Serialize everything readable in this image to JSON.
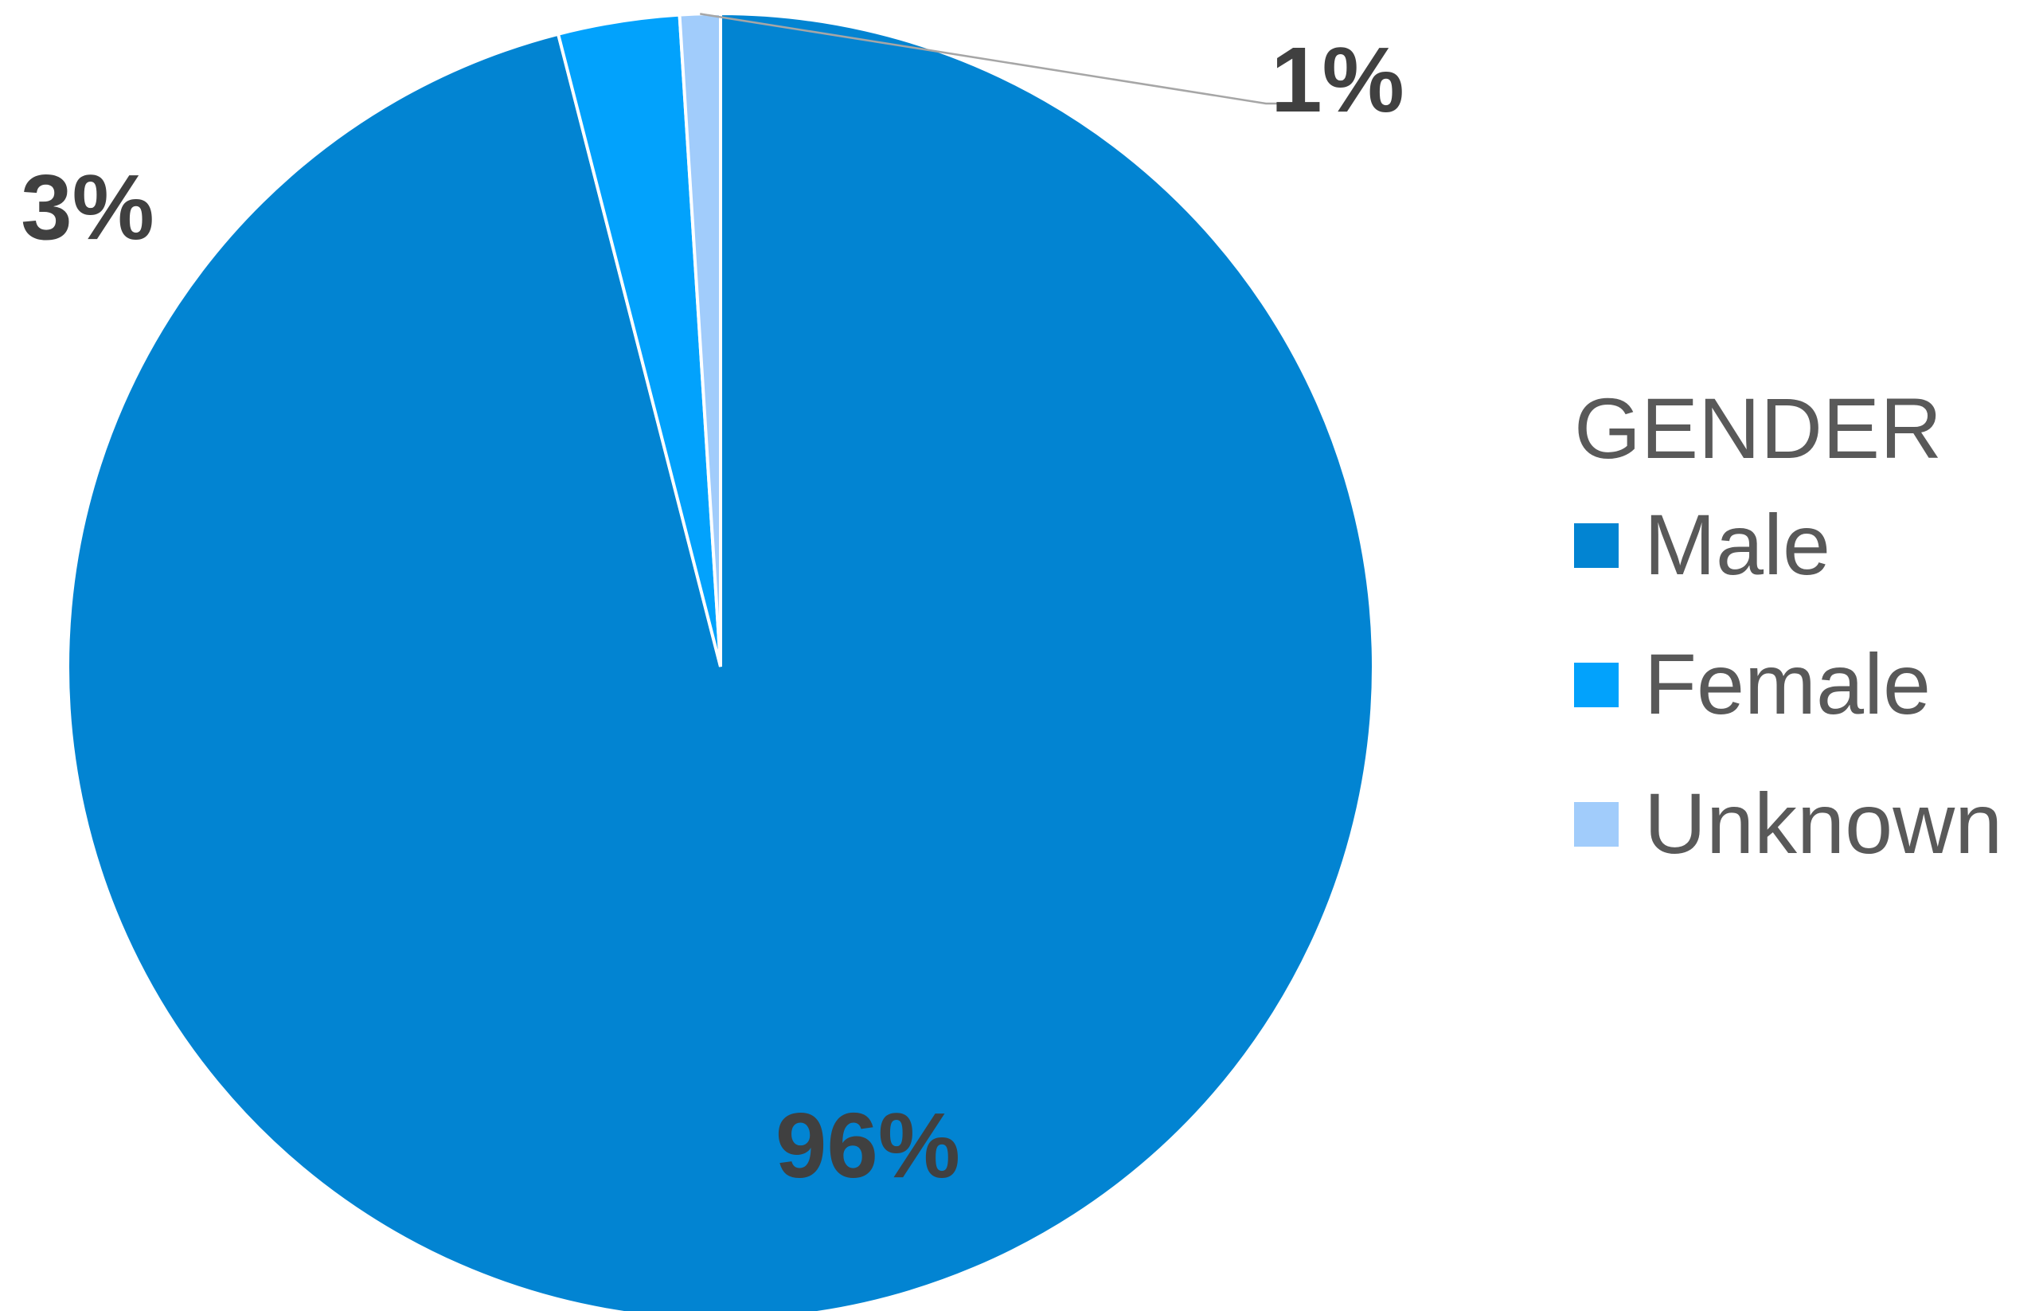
{
  "chart_data": {
    "type": "pie",
    "legend_title": "GENDER",
    "legend_position": "right",
    "start_angle": "12 o'clock, clockwise",
    "slices": [
      {
        "label": "Male",
        "value": 96,
        "value_label": "96%",
        "color": "#0284d2"
      },
      {
        "label": "Female",
        "value": 3,
        "value_label": "3%",
        "color": "#02a2fc"
      },
      {
        "label": "Unknown",
        "value": 1,
        "value_label": "1%",
        "color": "#a1ccfb"
      }
    ]
  }
}
